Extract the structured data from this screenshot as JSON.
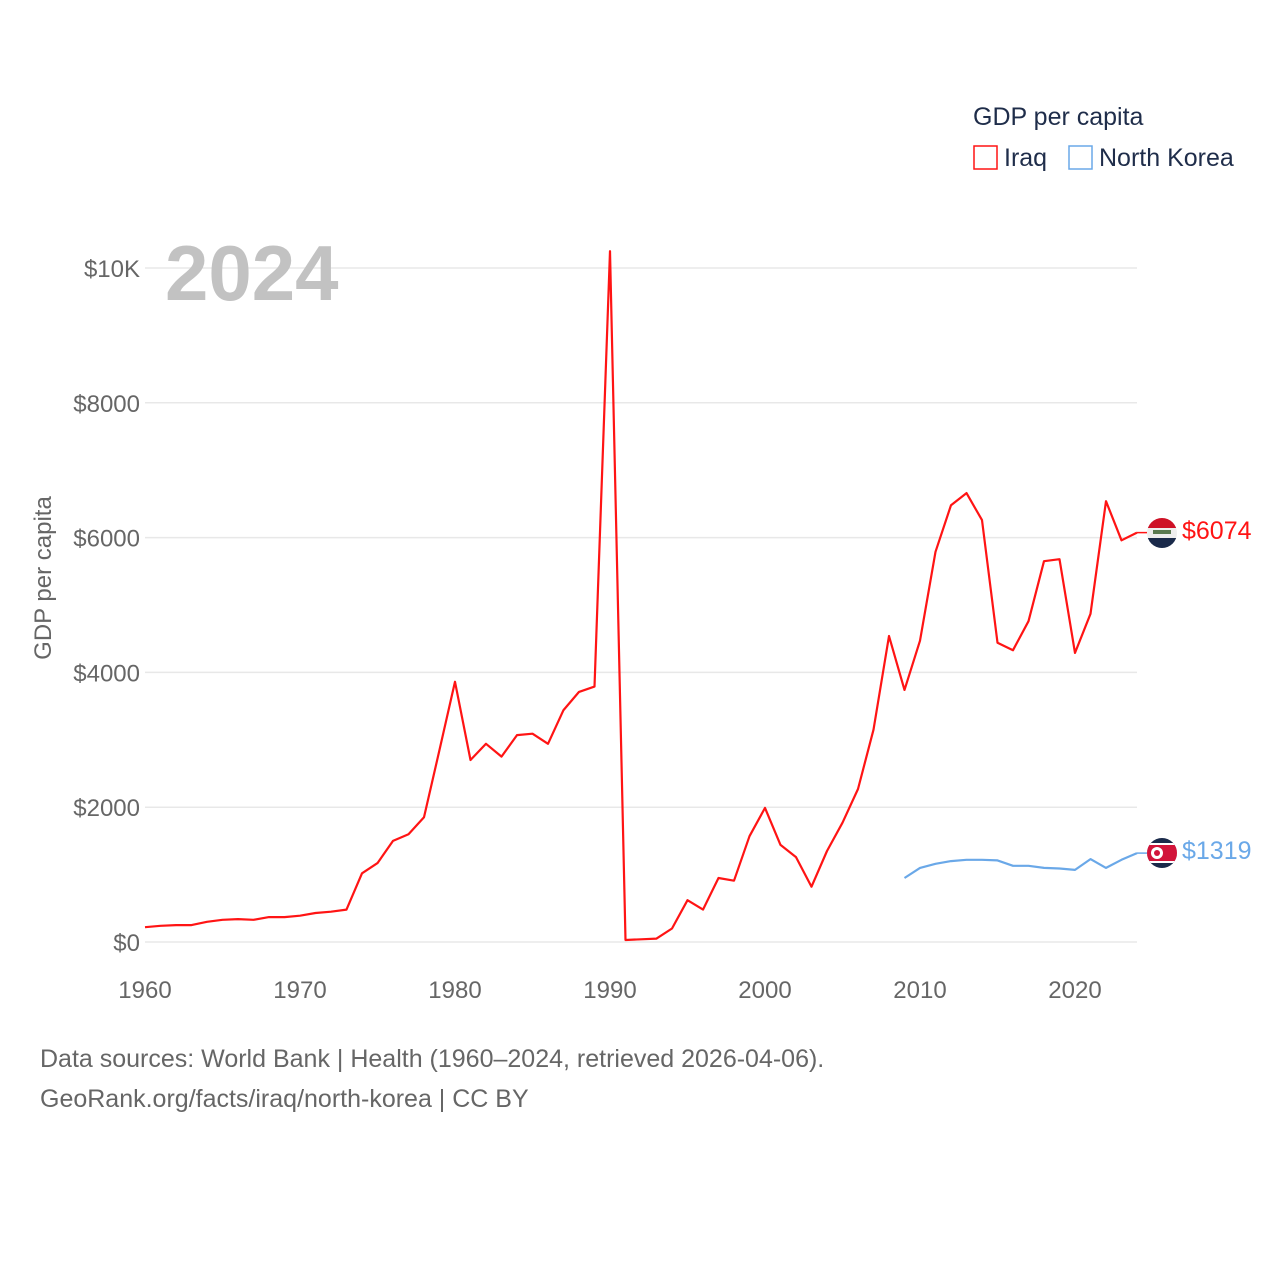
{
  "chart_data": {
    "type": "line",
    "title": "2024",
    "ylabel": "GDP per capita",
    "xlabel": "",
    "xlim": [
      1960,
      2024
    ],
    "ylim": [
      0,
      10000
    ],
    "grid": true,
    "x_ticks": [
      1960,
      1970,
      1980,
      1990,
      2000,
      2010,
      2020
    ],
    "x_tick_labels": [
      "1960",
      "1970",
      "1980",
      "1990",
      "2000",
      "2010",
      "2020"
    ],
    "y_ticks": [
      0,
      2000,
      4000,
      6000,
      8000,
      10000
    ],
    "y_tick_labels": [
      "$0",
      "$2000",
      "$4000",
      "$6000",
      "$8000",
      "$10K"
    ],
    "legend": {
      "title": "GDP per capita",
      "placement": "top-right"
    },
    "series": [
      {
        "name": "Iraq",
        "color": "#ff1414",
        "end_label": "$6074",
        "start_year": 1960,
        "values": [
          220,
          240,
          250,
          250,
          300,
          330,
          340,
          330,
          370,
          370,
          390,
          430,
          450,
          480,
          1020,
          1170,
          1500,
          1600,
          1850,
          2850,
          3860,
          2700,
          2940,
          2750,
          3070,
          3090,
          2940,
          3440,
          3710,
          3790,
          10250,
          30,
          40,
          50,
          200,
          620,
          480,
          950,
          910,
          1570,
          1990,
          1440,
          1260,
          820,
          1350,
          1770,
          2270,
          3150,
          4540,
          3740,
          4470,
          5790,
          6480,
          6660,
          6260,
          4440,
          4330,
          4760,
          5650,
          5680,
          4290,
          4870,
          6540,
          5960,
          6074
        ]
      },
      {
        "name": "North Korea",
        "color": "#6aa8e8",
        "end_label": "$1319",
        "start_year": 2009,
        "values": [
          950,
          1100,
          1160,
          1200,
          1220,
          1220,
          1210,
          1130,
          1130,
          1100,
          1090,
          1070,
          1230,
          1100,
          1220,
          1319
        ]
      }
    ]
  },
  "footer": {
    "sources": "Data sources: World Bank | Health (1960–2024, retrieved 2026-04-06).",
    "credit": "GeoRank.org/facts/iraq/north-korea | CC BY"
  }
}
